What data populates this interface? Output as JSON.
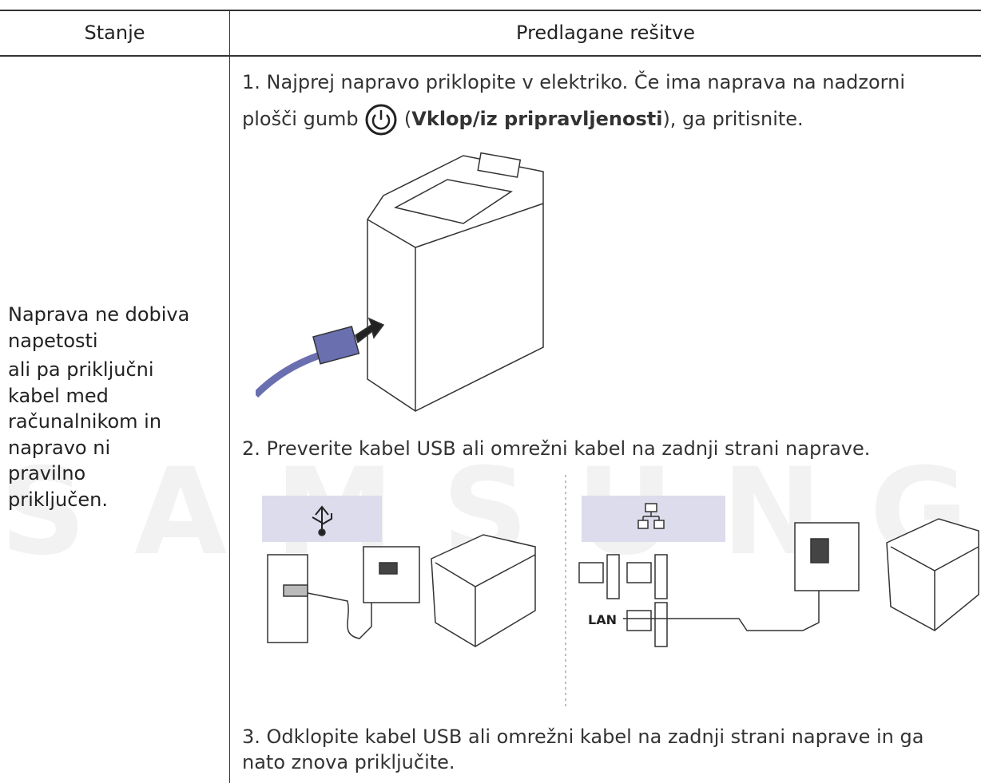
{
  "header": {
    "col1": "Stanje",
    "col2": "Predlagane rešitve"
  },
  "row": {
    "condition_lines": [
      "Naprava ne dobiva",
      "napetosti",
      "ali pa priključni",
      "kabel med",
      "računalnikom in",
      "napravo ni",
      "pravilno",
      "priključen."
    ],
    "step1": {
      "before": "1. Najprej napravo priklopite v elektriko. Če ima naprava na nadzorni plošči gumb",
      "open": "(",
      "bold": "Vklop/iz pripravljenosti",
      "after": "), ga pritisnite."
    },
    "step2": {
      "text": "2. Preverite kabel USB ali omrežni kabel na zadnji strani naprave.",
      "lan_label": "LAN"
    },
    "step3": {
      "text": "3. Odklopite kabel USB ali omrežni kabel na zadnji strani naprave in ga nato znova priključite."
    }
  },
  "watermark": "SAMSUNG"
}
